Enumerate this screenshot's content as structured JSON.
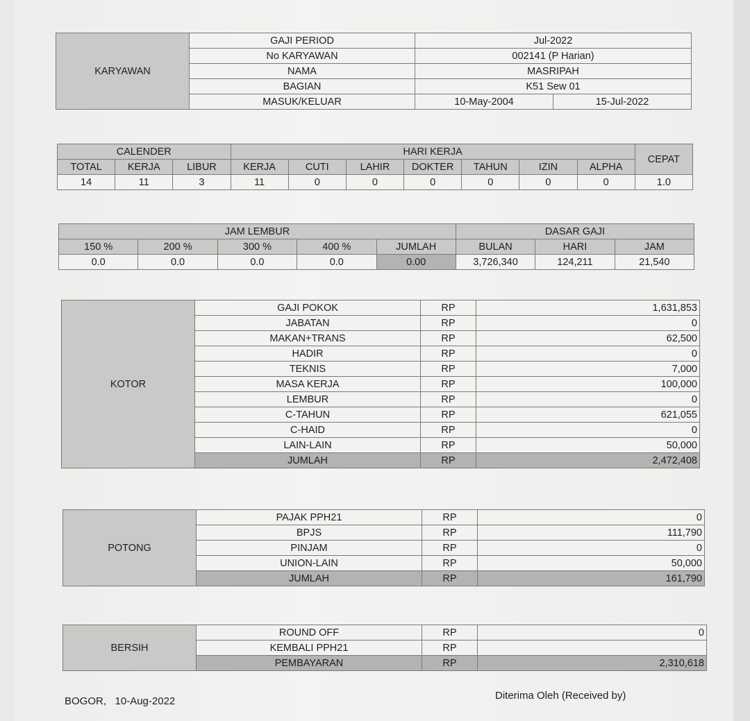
{
  "karyawan": {
    "label": "KARYAWAN",
    "rows": [
      {
        "label": "GAJI PERIOD",
        "value": "Jul-2022"
      },
      {
        "label": "No KARYAWAN",
        "value": "002141   (P Harian)"
      },
      {
        "label": "NAMA",
        "value": "MASRIPAH"
      },
      {
        "label": "BAGIAN",
        "value": "K51 Sew 01"
      }
    ],
    "masuk_keluar": {
      "label": "MASUK/KELUAR",
      "masuk": "10-May-2004",
      "keluar": "15-Jul-2022"
    }
  },
  "hari": {
    "calender_label": "CALENDER",
    "hari_kerja_label": "HARI KERJA",
    "cepat_label": "CEPAT",
    "columns": [
      "TOTAL",
      "KERJA",
      "LIBUR",
      "KERJA",
      "CUTI",
      "LAHIR",
      "DOKTER",
      "TAHUN",
      "IZIN",
      "ALPHA"
    ],
    "values": [
      "14",
      "11",
      "3",
      "11",
      "0",
      "0",
      "0",
      "0",
      "0",
      "0"
    ],
    "cepat_value": "1.0"
  },
  "lembur": {
    "jam_lembur_label": "JAM LEMBUR",
    "dasar_gaji_label": "DASAR GAJI",
    "columns": [
      "150 %",
      "200 %",
      "300 %",
      "400 %",
      "JUMLAH",
      "BULAN",
      "HARI",
      "JAM"
    ],
    "values": [
      "0.0",
      "0.0",
      "0.0",
      "0.0",
      "0.00",
      "3,726,340",
      "124,211",
      "21,540"
    ]
  },
  "kotor": {
    "label": "KOTOR",
    "rows": [
      {
        "label": "GAJI POKOK",
        "cur": "RP",
        "value": "1,631,853"
      },
      {
        "label": "JABATAN",
        "cur": "RP",
        "value": "0"
      },
      {
        "label": "MAKAN+TRANS",
        "cur": "RP",
        "value": "62,500"
      },
      {
        "label": "HADIR",
        "cur": "RP",
        "value": "0"
      },
      {
        "label": "TEKNIS",
        "cur": "RP",
        "value": "7,000"
      },
      {
        "label": "MASA KERJA",
        "cur": "RP",
        "value": "100,000"
      },
      {
        "label": "LEMBUR",
        "cur": "RP",
        "value": "0"
      },
      {
        "label": "C-TAHUN",
        "cur": "RP",
        "value": "621,055"
      },
      {
        "label": "C-HAID",
        "cur": "RP",
        "value": "0"
      },
      {
        "label": "LAIN-LAIN",
        "cur": "RP",
        "value": "50,000"
      },
      {
        "label": "JUMLAH",
        "cur": "RP",
        "value": "2,472,408",
        "total": true
      }
    ]
  },
  "potong": {
    "label": "POTONG",
    "rows": [
      {
        "label": "PAJAK PPH21",
        "cur": "RP",
        "value": "0"
      },
      {
        "label": "BPJS",
        "cur": "RP",
        "value": "111,790"
      },
      {
        "label": "PINJAM",
        "cur": "RP",
        "value": "0"
      },
      {
        "label": "UNION-LAIN",
        "cur": "RP",
        "value": "50,000"
      },
      {
        "label": "JUMLAH",
        "cur": "RP",
        "value": "161,790",
        "total": true
      }
    ]
  },
  "bersih": {
    "label": "BERSIH",
    "rows": [
      {
        "label": "ROUND OFF",
        "cur": "RP",
        "value": "0"
      },
      {
        "label": "KEMBALI PPH21",
        "cur": "RP",
        "value": ""
      },
      {
        "label": "PEMBAYARAN",
        "cur": "RP",
        "value": "2,310,618",
        "total": true
      }
    ]
  },
  "footer": {
    "place": "BOGOR,",
    "date": "10-Aug-2022",
    "received": "Diterima Oleh (Received by)"
  }
}
